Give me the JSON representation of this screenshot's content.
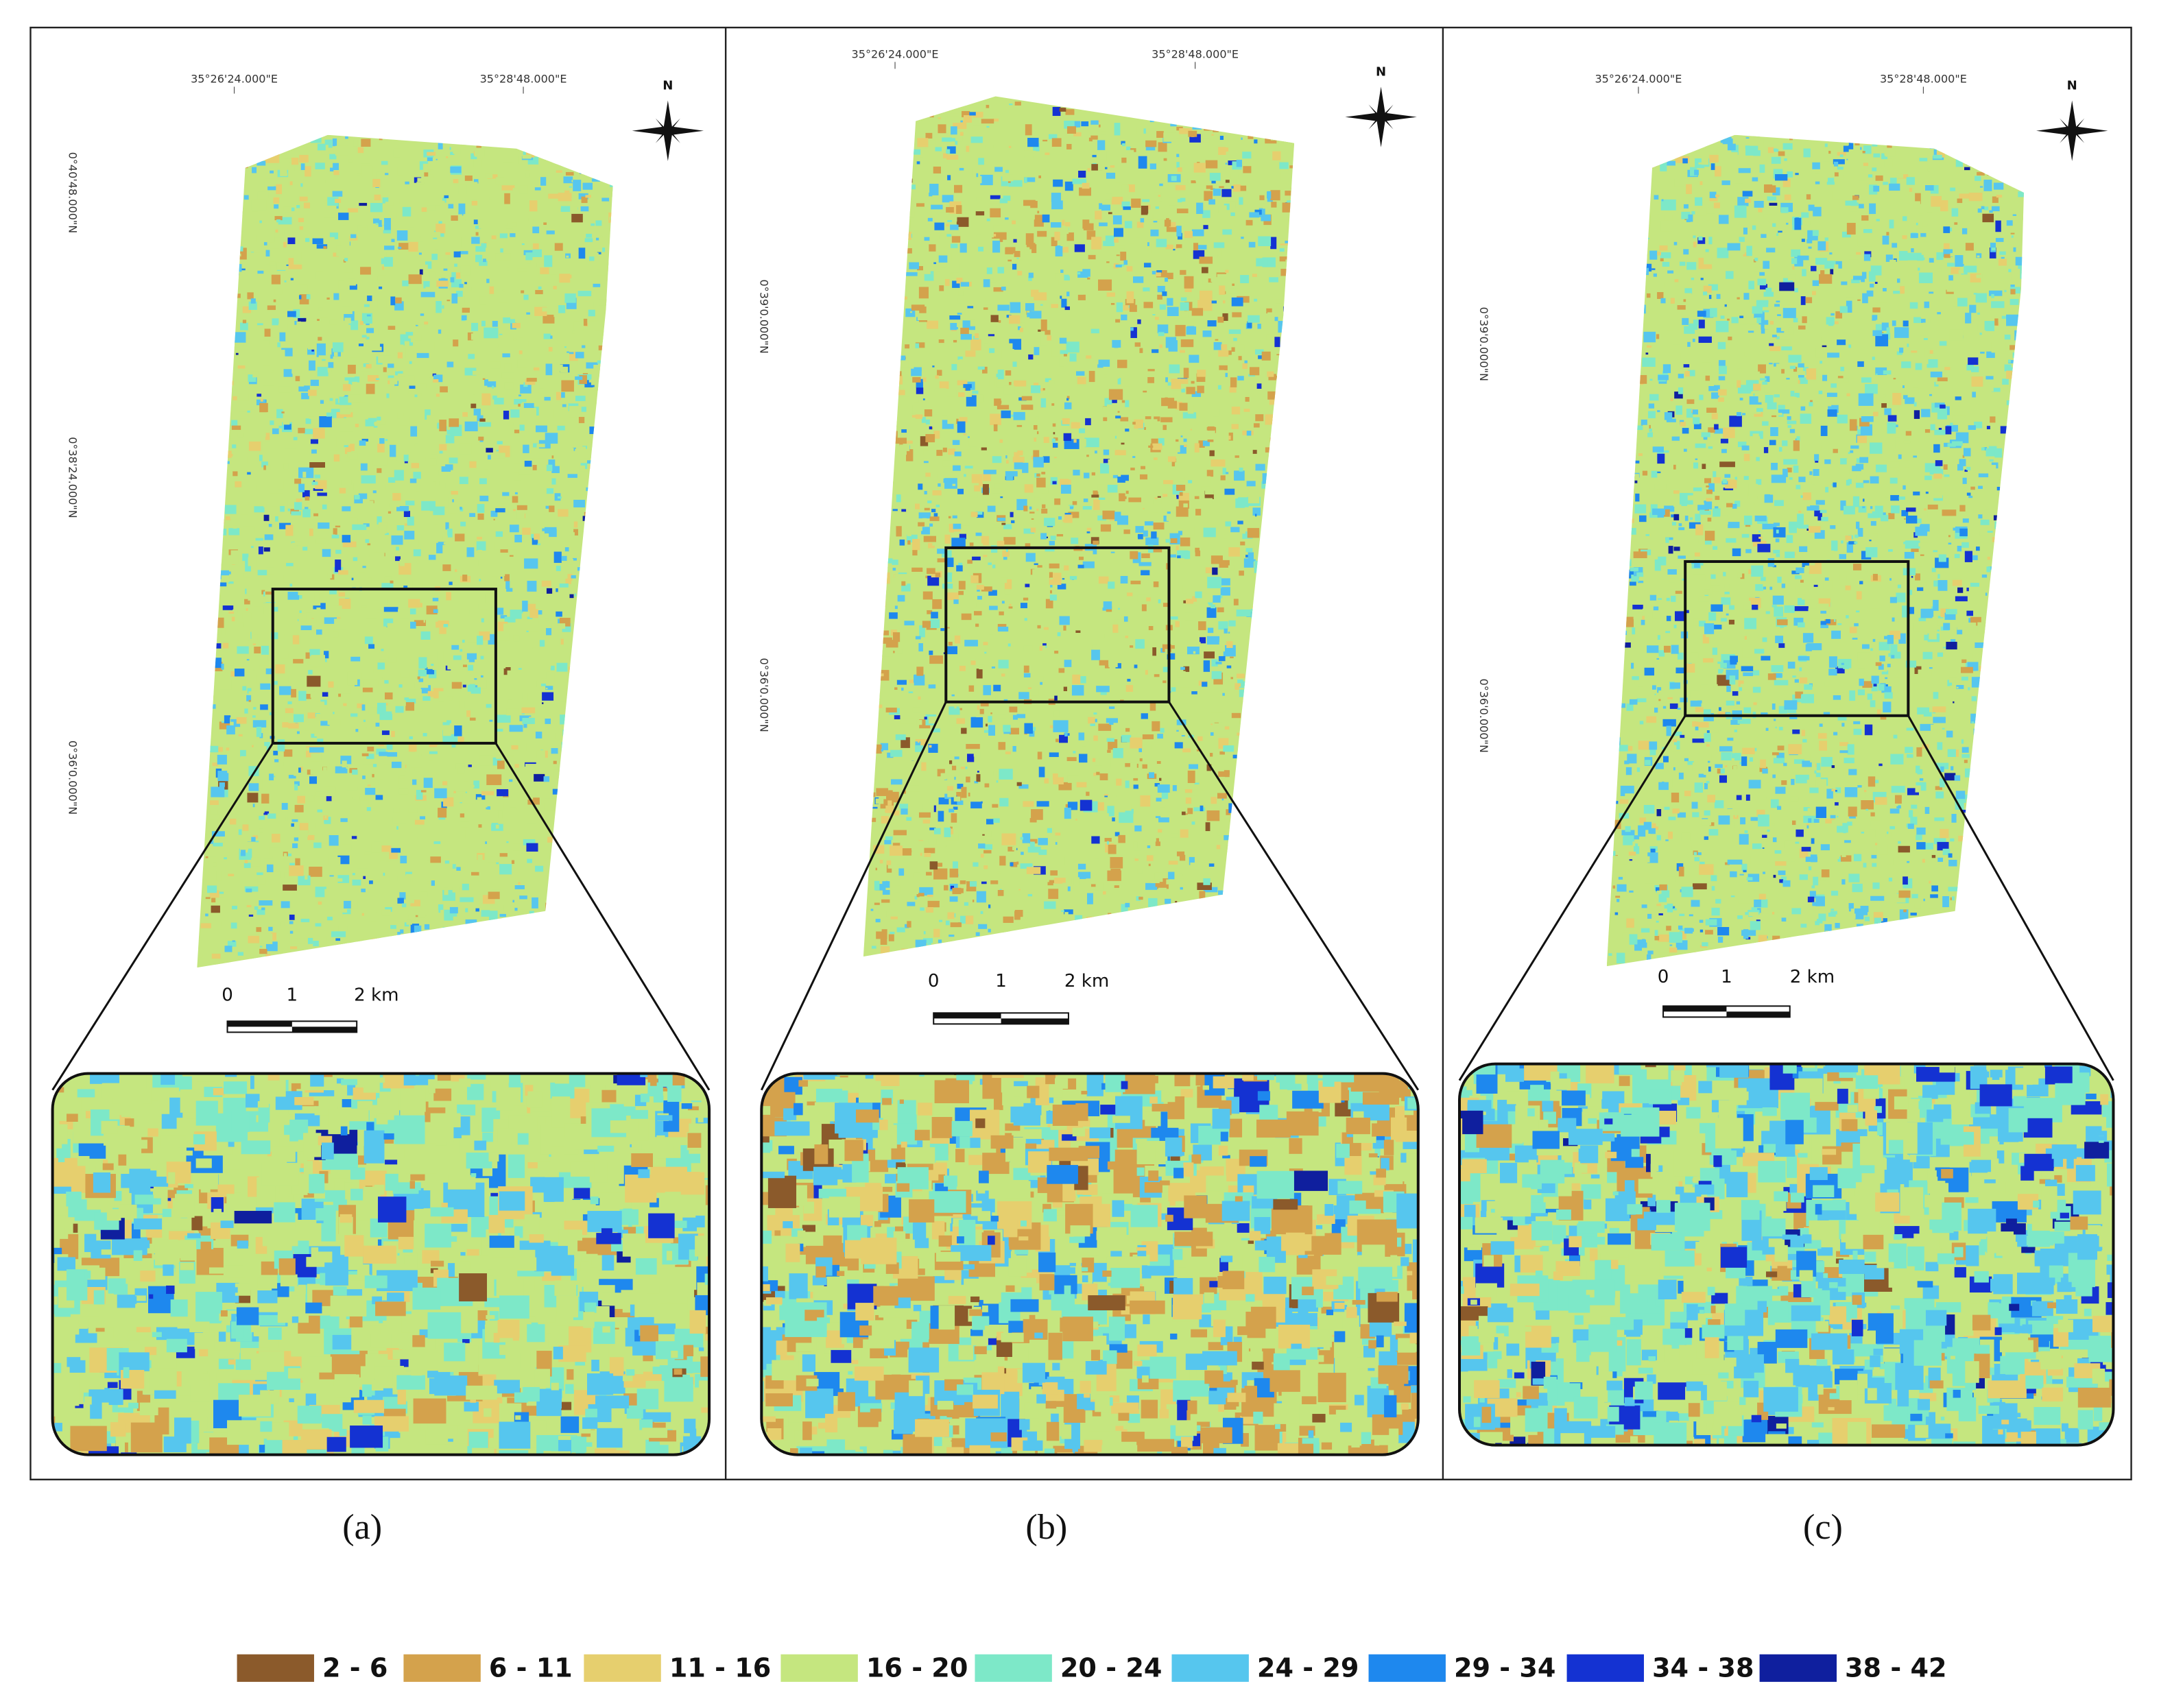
{
  "panels": [
    {
      "caption": "(a)",
      "north": "N",
      "lon_labels": [
        "35°26'24.000\"E",
        "35°28'48.000\"E"
      ],
      "lat_labels": [
        "0°40'48.000\"N",
        "0°38'24.000\"N",
        "0°36'0.000\"N"
      ],
      "scale_labels": [
        "0",
        "1",
        "2 km"
      ]
    },
    {
      "caption": "(b)",
      "north": "N",
      "lon_labels": [
        "35°26'24.000\"E",
        "35°28'48.000\"E"
      ],
      "lat_labels": [
        "0°39'0.000\"N",
        "0°36'0.000\"N"
      ],
      "scale_labels": [
        "0",
        "1",
        "2 km"
      ]
    },
    {
      "caption": "(c)",
      "north": "N",
      "lon_labels": [
        "35°26'24.000\"E",
        "35°28'48.000\"E"
      ],
      "lat_labels": [
        "0°39'0.000\"N",
        "0°36'0.000\"N"
      ],
      "scale_labels": [
        "0",
        "1",
        "2 km"
      ]
    }
  ],
  "legend": [
    {
      "label": "2 - 6",
      "color": "#8b5a2b"
    },
    {
      "label": "6 - 11",
      "color": "#d4a24c"
    },
    {
      "label": "11 - 16",
      "color": "#e6cf6e"
    },
    {
      "label": "16 - 20",
      "color": "#c5e67f"
    },
    {
      "label": "20 - 24",
      "color": "#7de8c8"
    },
    {
      "label": "24 - 29",
      "color": "#56c6ee"
    },
    {
      "label": "29 - 34",
      "color": "#1e88ee"
    },
    {
      "label": "34 - 38",
      "color": "#1432d2"
    },
    {
      "label": "38 - 42",
      "color": "#0f1f9e"
    }
  ]
}
